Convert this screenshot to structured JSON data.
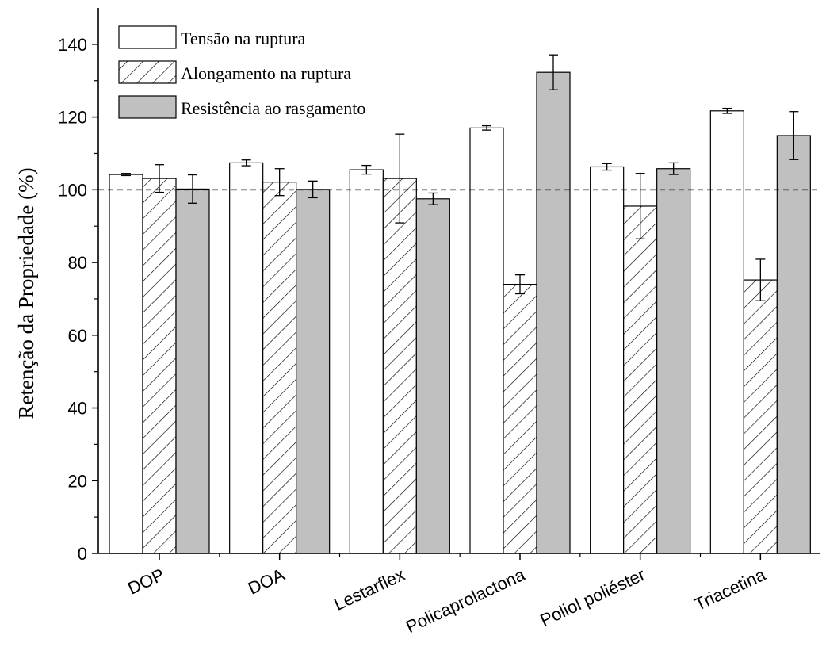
{
  "chart_data": {
    "type": "bar",
    "title": "",
    "xlabel": "",
    "ylabel": "Retenção da Propriedade (%)",
    "ylim": [
      0,
      150
    ],
    "yticks": [
      0,
      20,
      40,
      60,
      80,
      100,
      120,
      140
    ],
    "reference_line": 100,
    "grid": false,
    "legend_position": "top-left",
    "categories": [
      "DOP",
      "DOA",
      "Lestarflex",
      "Policaprolactona",
      "Poliol poliéster",
      "Triacetina"
    ],
    "series": [
      {
        "name": "Tensão na ruptura",
        "style": "white",
        "values": [
          104.2,
          107.4,
          105.5,
          117.0,
          106.3,
          121.7
        ],
        "errors": [
          0.3,
          0.8,
          1.2,
          0.6,
          0.9,
          0.7
        ]
      },
      {
        "name": "Alongamento na ruptura",
        "style": "hatched",
        "values": [
          103.1,
          102.1,
          103.1,
          74.0,
          95.5,
          75.2
        ],
        "errors": [
          3.8,
          3.7,
          12.2,
          2.6,
          9.0,
          5.7
        ]
      },
      {
        "name": "Resistência ao rasgamento",
        "style": "gray",
        "values": [
          100.2,
          100.1,
          97.5,
          132.3,
          105.8,
          114.9
        ],
        "errors": [
          3.9,
          2.3,
          1.6,
          4.8,
          1.6,
          6.6
        ]
      }
    ],
    "colors": {
      "white": "#ffffff",
      "gray": "#c0c0c0",
      "hatch": "#000000",
      "axis": "#000000"
    }
  }
}
